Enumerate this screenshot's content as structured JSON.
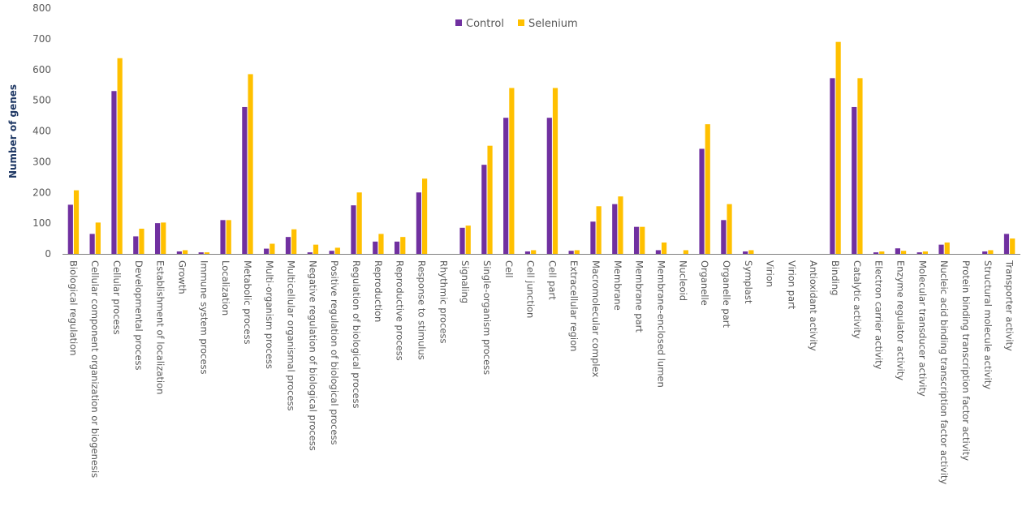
{
  "chart_data": {
    "type": "bar",
    "title": "",
    "xlabel": "",
    "ylabel": "Number of genes",
    "ylim": [
      0,
      800
    ],
    "yticks": [
      0,
      100,
      200,
      300,
      400,
      500,
      600,
      700,
      800
    ],
    "grid": false,
    "legend_position": "top-center",
    "categories": [
      "Biological regulation",
      "Cellular component organization or biogenesis",
      "Cellular process",
      "Developmental process",
      "Establishment of localization",
      "Growth",
      "Immune system process",
      "Localization",
      "Metabolic process",
      "Multi-organism process",
      "Multicellular organismal process",
      "Negative regulation of biological process",
      "Positive regulation of biological process",
      "Regulation of biological process",
      "Reproduction",
      "Reproductive process",
      "Response to stimulus",
      "Rhythmic process",
      "Signaling",
      "Single-organism process",
      "Cell",
      "Cell junction",
      "Cell part",
      "Extracellular region",
      "Macromolecular complex",
      "Membrane",
      "Membrane part",
      "Membrane-enclosed lumen",
      "Nucleoid",
      "Organelle",
      "Organelle part",
      "Symplast",
      "Virion",
      "Virion part",
      "Antioxidant activity",
      "Binding",
      "Catalytic activity",
      "Electron carrier activity",
      "Enzyme regulator activity",
      "Molecular transducer activity",
      "Nucleic acid binding transcription factor activity",
      "Protein binding transcription factor activity",
      "Structural molecule activity",
      "Transporter activity"
    ],
    "series": [
      {
        "name": "Control",
        "color": "#7030a0",
        "values": [
          160,
          65,
          530,
          57,
          100,
          8,
          5,
          110,
          478,
          17,
          55,
          5,
          10,
          158,
          40,
          40,
          200,
          0,
          85,
          290,
          443,
          8,
          443,
          10,
          105,
          162,
          88,
          12,
          0,
          342,
          110,
          8,
          0,
          0,
          0,
          572,
          478,
          5,
          18,
          5,
          30,
          0,
          8,
          65
        ]
      },
      {
        "name": "Selenium",
        "color": "#ffc000",
        "values": [
          207,
          102,
          637,
          82,
          102,
          12,
          5,
          110,
          585,
          33,
          80,
          30,
          20,
          200,
          65,
          55,
          245,
          0,
          92,
          352,
          540,
          12,
          540,
          12,
          155,
          187,
          88,
          37,
          12,
          422,
          162,
          12,
          0,
          0,
          0,
          690,
          572,
          8,
          10,
          8,
          37,
          0,
          12,
          50
        ]
      }
    ]
  }
}
